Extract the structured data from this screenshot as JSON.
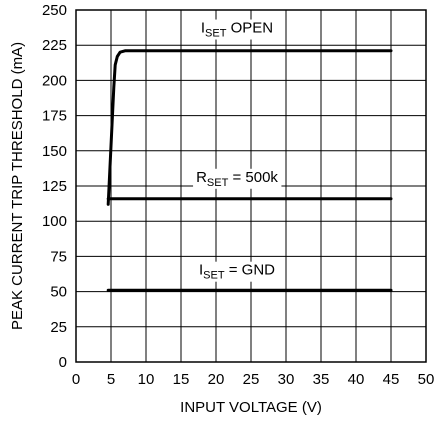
{
  "chart_data": {
    "type": "line",
    "xlabel": "INPUT VOLTAGE (V)",
    "ylabel": "PEAK CURRENT TRIP THRESHOLD (mA)",
    "xlim": [
      0,
      50
    ],
    "ylim": [
      0,
      250
    ],
    "x_ticks": [
      "0",
      "5",
      "10",
      "15",
      "20",
      "25",
      "30",
      "35",
      "40",
      "45",
      "50"
    ],
    "y_ticks": [
      "0",
      "25",
      "50",
      "75",
      "100",
      "125",
      "150",
      "175",
      "200",
      "225",
      "250"
    ],
    "grid": true,
    "series": [
      {
        "label_main": "I",
        "label_sub": "SET",
        "label_rest": " OPEN",
        "label_x": 23,
        "label_y": 234,
        "x": [
          4.6,
          5.4,
          5.6,
          5.9,
          6.3,
          7.0,
          10,
          20,
          30,
          45
        ],
        "y": [
          112,
          195,
          211,
          217,
          220,
          221,
          221,
          221,
          221,
          221
        ]
      },
      {
        "label_main": "R",
        "label_sub": "SET",
        "label_rest": " = 500k",
        "label_x": 23,
        "label_y": 128,
        "x": [
          4.6,
          45
        ],
        "y": [
          116,
          116
        ]
      },
      {
        "label_main": "I",
        "label_sub": "SET",
        "label_rest": " = GND",
        "label_x": 23,
        "label_y": 62,
        "x": [
          4.6,
          45
        ],
        "y": [
          51,
          51
        ]
      }
    ]
  }
}
